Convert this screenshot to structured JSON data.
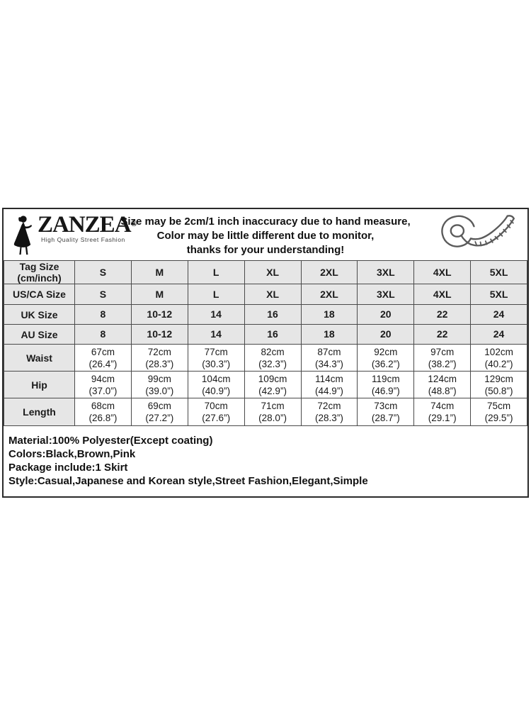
{
  "colors": {
    "row_shade": "#e6e6e6",
    "grid_line": "#4a4a4a",
    "outer_border": "#2a2a2a",
    "text": "#1a1a1a"
  },
  "header": {
    "brand": {
      "name": "ZANZEA",
      "registered": "®",
      "tagline": "High Quality Street Fashion"
    },
    "disclaimer_lines": [
      "Size may be 2cm/1 inch inaccuracy due to hand measure,",
      "Color may be little different due to monitor,",
      "thanks for your understanding!"
    ]
  },
  "size_table": {
    "rows": [
      {
        "label": "Tag Size\n(cm/inch)",
        "shaded": true,
        "values": [
          "S",
          "M",
          "L",
          "XL",
          "2XL",
          "3XL",
          "4XL",
          "5XL"
        ]
      },
      {
        "label": "US/CA Size",
        "shaded": true,
        "values": [
          "S",
          "M",
          "L",
          "XL",
          "2XL",
          "3XL",
          "4XL",
          "5XL"
        ]
      },
      {
        "label": "UK Size",
        "shaded": true,
        "values": [
          "8",
          "10-12",
          "14",
          "16",
          "18",
          "20",
          "22",
          "24"
        ]
      },
      {
        "label": "AU Size",
        "shaded": true,
        "values": [
          "8",
          "10-12",
          "14",
          "16",
          "18",
          "20",
          "22",
          "24"
        ]
      },
      {
        "label": "Waist",
        "shaded": false,
        "values": [
          "67cm\n(26.4”)",
          "72cm\n(28.3”)",
          "77cm\n(30.3”)",
          "82cm\n(32.3”)",
          "87cm\n(34.3”)",
          "92cm\n(36.2”)",
          "97cm\n(38.2”)",
          "102cm\n(40.2”)"
        ]
      },
      {
        "label": "Hip",
        "shaded": false,
        "values": [
          "94cm\n(37.0”)",
          "99cm\n(39.0”)",
          "104cm\n(40.9”)",
          "109cm\n(42.9”)",
          "114cm\n(44.9”)",
          "119cm\n(46.9”)",
          "124cm\n(48.8”)",
          "129cm\n(50.8”)"
        ]
      },
      {
        "label": "Length",
        "shaded": false,
        "values": [
          "68cm\n(26.8”)",
          "69cm\n(27.2”)",
          "70cm\n(27.6”)",
          "71cm\n(28.0”)",
          "72cm\n(28.3”)",
          "73cm\n(28.7”)",
          "74cm\n(29.1”)",
          "75cm\n(29.5”)"
        ]
      }
    ]
  },
  "product_info": {
    "lines": [
      "Material:100% Polyester(Except coating)",
      "Colors:Black,Brown,Pink",
      "Package include:1 Skirt",
      "Style:Casual,Japanese and Korean style,Street Fashion,Elegant,Simple"
    ]
  }
}
